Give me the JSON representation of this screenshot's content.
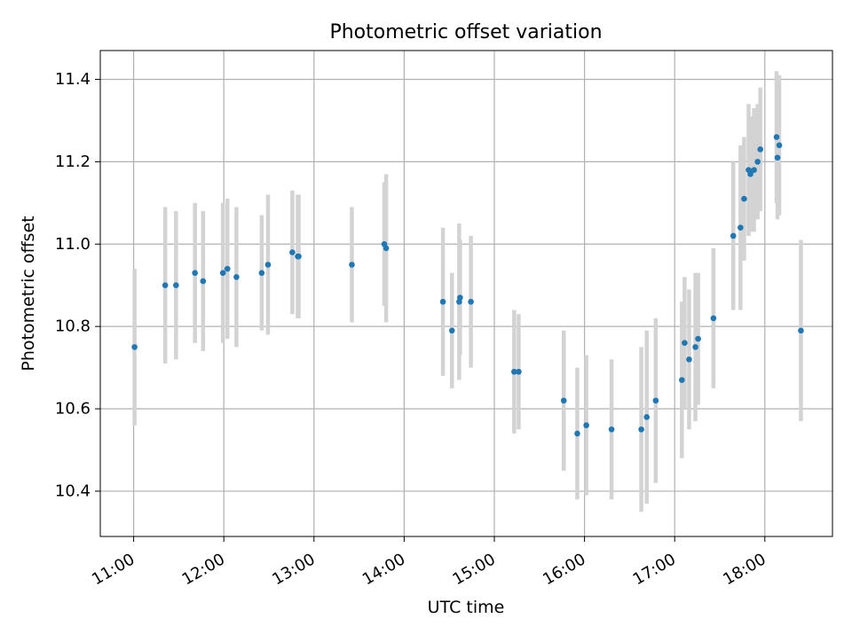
{
  "chart_data": {
    "type": "scatter",
    "title": "Photometric offset variation",
    "xlabel": "UTC time",
    "ylabel": "Photometric offset",
    "x_unit": "UTC hour",
    "xlim": [
      10.63,
      18.75
    ],
    "ylim": [
      10.29,
      11.47
    ],
    "grid": true,
    "xtick_values": [
      11,
      12,
      13,
      14,
      15,
      16,
      17,
      18
    ],
    "xtick_labels": [
      "11:00",
      "12:00",
      "13:00",
      "14:00",
      "15:00",
      "16:00",
      "17:00",
      "18:00"
    ],
    "ytick_values": [
      10.4,
      10.6,
      10.8,
      11.0,
      11.2,
      11.4
    ],
    "ytick_labels": [
      "10.4",
      "10.6",
      "10.8",
      "11.0",
      "11.2",
      "11.4"
    ],
    "colors": {
      "points": "#1f77b4",
      "errorbars": "#d3d3d3",
      "grid": "#b0b0b0",
      "axes": "#000000"
    },
    "series": [
      {
        "x": [
          11.01,
          11.35,
          11.47,
          11.68,
          11.77,
          11.99,
          12.04,
          12.14,
          12.42,
          12.49,
          12.76,
          12.82,
          12.83,
          13.42,
          13.78,
          13.8,
          14.43,
          14.53,
          14.61,
          14.62,
          14.74,
          15.22,
          15.27,
          15.77,
          15.92,
          16.02,
          16.3,
          16.63,
          16.69,
          16.79,
          17.08,
          17.11,
          17.16,
          17.23,
          17.26,
          17.43,
          17.65,
          17.73,
          17.77,
          17.82,
          17.84,
          17.88,
          17.92,
          17.95,
          18.13,
          18.14,
          18.16,
          18.4
        ],
        "y": [
          10.75,
          10.9,
          10.9,
          10.93,
          10.91,
          10.93,
          10.94,
          10.92,
          10.93,
          10.95,
          10.98,
          10.97,
          10.97,
          10.95,
          11.0,
          10.99,
          10.86,
          10.79,
          10.86,
          10.87,
          10.86,
          10.69,
          10.69,
          10.62,
          10.54,
          10.56,
          10.55,
          10.55,
          10.58,
          10.62,
          10.67,
          10.76,
          10.72,
          10.75,
          10.77,
          10.82,
          11.02,
          11.04,
          11.11,
          11.18,
          11.17,
          11.18,
          11.2,
          11.23,
          11.26,
          11.21,
          11.24,
          10.79
        ],
        "yerr": [
          0.19,
          0.19,
          0.18,
          0.17,
          0.17,
          0.17,
          0.17,
          0.17,
          0.14,
          0.17,
          0.15,
          0.15,
          0.15,
          0.14,
          0.15,
          0.18,
          0.18,
          0.14,
          0.19,
          0.14,
          0.16,
          0.15,
          0.14,
          0.17,
          0.16,
          0.17,
          0.17,
          0.2,
          0.21,
          0.2,
          0.19,
          0.16,
          0.17,
          0.18,
          0.16,
          0.17,
          0.18,
          0.2,
          0.15,
          0.16,
          0.14,
          0.15,
          0.14,
          0.15,
          0.16,
          0.15,
          0.17,
          0.22
        ]
      }
    ]
  }
}
